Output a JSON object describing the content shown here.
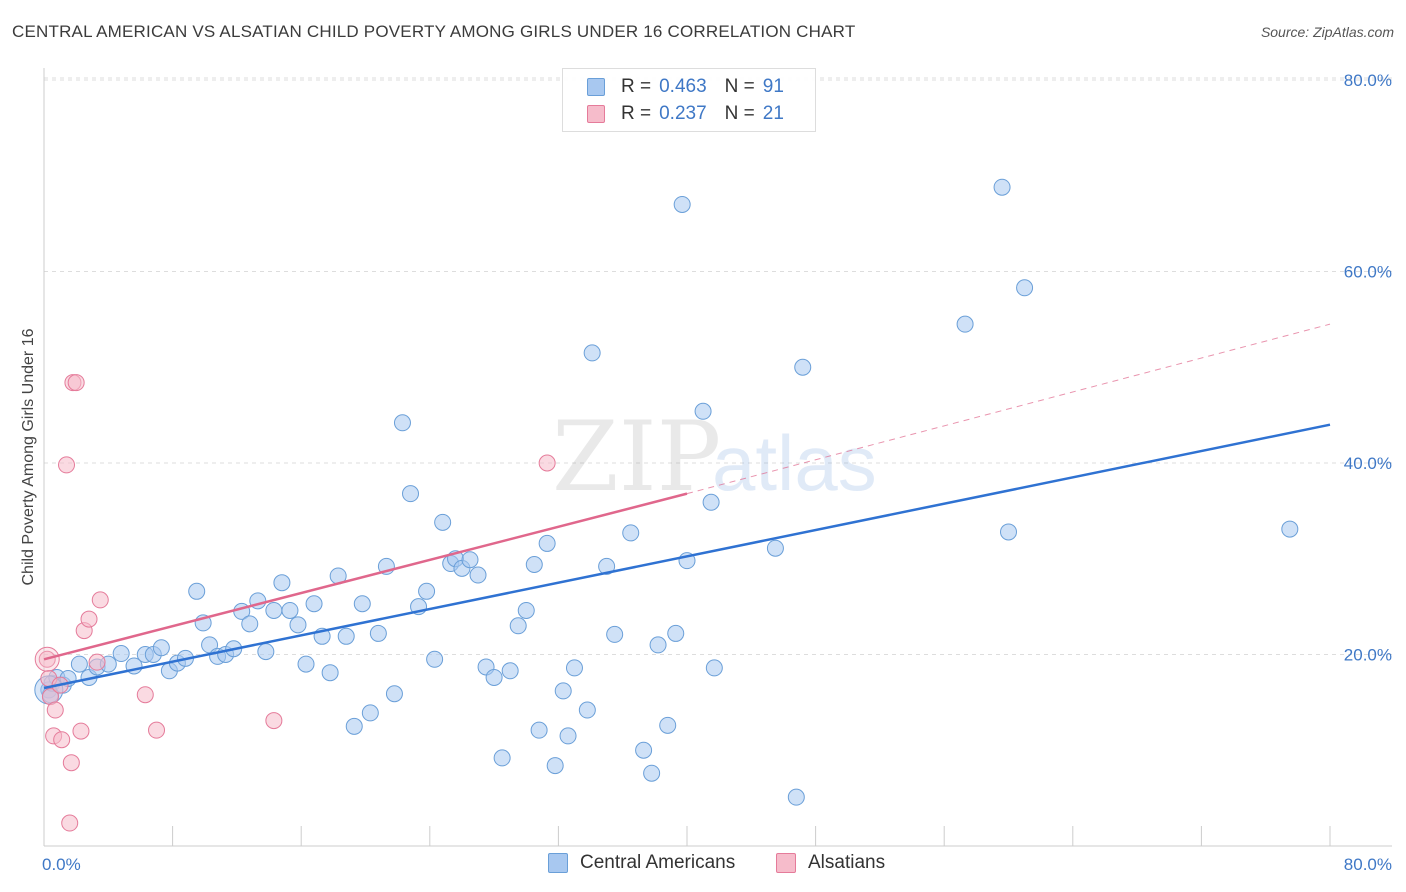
{
  "title": "CENTRAL AMERICAN VS ALSATIAN CHILD POVERTY AMONG GIRLS UNDER 16 CORRELATION CHART",
  "source": "Source: ZipAtlas.com",
  "watermark": {
    "zip": "ZIP",
    "atlas": "atlas"
  },
  "legend_top": [
    {
      "r_label": "R =",
      "r_value": "0.463",
      "n_label": "N =",
      "n_value": "91",
      "color": "#a8c8f0",
      "border": "#6a9fd8"
    },
    {
      "r_label": "R =",
      "r_value": "0.237",
      "n_label": "N =",
      "n_value": "21",
      "color": "#f6bccb",
      "border": "#e57b9a"
    }
  ],
  "legend_bottom": [
    {
      "label": "Central Americans",
      "color": "#a8c8f0",
      "border": "#6a9fd8"
    },
    {
      "label": "Alsatians",
      "color": "#f6bccb",
      "border": "#e57b9a"
    }
  ],
  "colors": {
    "blue_fill": "#a8c8f0",
    "blue_stroke": "#6a9fd8",
    "blue_line": "#2f72d2",
    "pink_fill": "#f6bccb",
    "pink_stroke": "#e57b9a",
    "pink_line": "#e0678c",
    "grid": "#dddddd",
    "tick_text": "#3f78c6"
  },
  "chart_data": {
    "type": "scatter",
    "title": "CENTRAL AMERICAN VS ALSATIAN CHILD POVERTY AMONG GIRLS UNDER 16 CORRELATION CHART",
    "xlabel": "",
    "ylabel": "Child Poverty Among Girls Under 16",
    "xlim": [
      0,
      80
    ],
    "ylim": [
      0,
      80
    ],
    "x_tick_labels": [
      "0.0%",
      "80.0%"
    ],
    "y_tick_labels": [
      "20.0%",
      "40.0%",
      "60.0%",
      "80.0%"
    ],
    "y_ticks": [
      20,
      40,
      60,
      80
    ],
    "grid": true,
    "legend_position": "top-center",
    "series": [
      {
        "name": "Central Americans",
        "r": 0.463,
        "n": 91,
        "trend": {
          "x": [
            0,
            80
          ],
          "y": [
            16.5,
            44.0
          ]
        },
        "points": [
          [
            0.3,
            16.3
          ],
          [
            0.4,
            15.8
          ],
          [
            0.5,
            17.0
          ],
          [
            0.8,
            17.6
          ],
          [
            1.2,
            16.8
          ],
          [
            1.5,
            17.5
          ],
          [
            2.2,
            19.0
          ],
          [
            2.8,
            17.6
          ],
          [
            3.3,
            18.7
          ],
          [
            4.0,
            19.0
          ],
          [
            4.8,
            20.1
          ],
          [
            5.6,
            18.8
          ],
          [
            6.3,
            20.0
          ],
          [
            6.8,
            20.0
          ],
          [
            7.3,
            20.7
          ],
          [
            7.8,
            18.3
          ],
          [
            8.3,
            19.1
          ],
          [
            8.8,
            19.6
          ],
          [
            9.5,
            26.6
          ],
          [
            9.9,
            23.3
          ],
          [
            10.3,
            21.0
          ],
          [
            10.8,
            19.8
          ],
          [
            11.3,
            20.0
          ],
          [
            11.8,
            20.6
          ],
          [
            12.3,
            24.5
          ],
          [
            12.8,
            23.2
          ],
          [
            13.3,
            25.6
          ],
          [
            13.8,
            20.3
          ],
          [
            14.3,
            24.6
          ],
          [
            14.8,
            27.5
          ],
          [
            15.3,
            24.6
          ],
          [
            15.8,
            23.1
          ],
          [
            16.3,
            19.0
          ],
          [
            16.8,
            25.3
          ],
          [
            17.3,
            21.9
          ],
          [
            17.8,
            18.1
          ],
          [
            18.3,
            28.2
          ],
          [
            18.8,
            21.9
          ],
          [
            19.3,
            12.5
          ],
          [
            19.8,
            25.3
          ],
          [
            20.3,
            13.9
          ],
          [
            20.8,
            22.2
          ],
          [
            21.3,
            29.2
          ],
          [
            21.8,
            15.9
          ],
          [
            22.3,
            44.2
          ],
          [
            22.8,
            36.8
          ],
          [
            23.3,
            25.0
          ],
          [
            23.8,
            26.6
          ],
          [
            24.3,
            19.5
          ],
          [
            24.8,
            33.8
          ],
          [
            25.3,
            29.5
          ],
          [
            25.6,
            30.0
          ],
          [
            26.0,
            29.0
          ],
          [
            26.5,
            29.9
          ],
          [
            27.0,
            28.3
          ],
          [
            27.5,
            18.7
          ],
          [
            28.0,
            17.6
          ],
          [
            28.5,
            9.2
          ],
          [
            29.0,
            18.3
          ],
          [
            29.5,
            23.0
          ],
          [
            30.0,
            24.6
          ],
          [
            30.5,
            29.4
          ],
          [
            30.8,
            12.1
          ],
          [
            31.3,
            31.6
          ],
          [
            31.8,
            8.4
          ],
          [
            32.3,
            16.2
          ],
          [
            32.6,
            11.5
          ],
          [
            33.0,
            18.6
          ],
          [
            33.8,
            14.2
          ],
          [
            34.1,
            51.5
          ],
          [
            35.0,
            29.2
          ],
          [
            35.5,
            22.1
          ],
          [
            36.5,
            32.7
          ],
          [
            37.3,
            10.0
          ],
          [
            37.8,
            7.6
          ],
          [
            38.2,
            21.0
          ],
          [
            38.8,
            12.6
          ],
          [
            39.3,
            22.2
          ],
          [
            39.7,
            67.0
          ],
          [
            40.0,
            29.8
          ],
          [
            41.0,
            45.4
          ],
          [
            41.5,
            35.9
          ],
          [
            41.7,
            18.6
          ],
          [
            45.5,
            31.1
          ],
          [
            46.8,
            5.1
          ],
          [
            47.2,
            50.0
          ],
          [
            57.3,
            54.5
          ],
          [
            59.6,
            68.8
          ],
          [
            60.0,
            32.8
          ],
          [
            61.0,
            58.3
          ],
          [
            77.5,
            33.1
          ]
        ]
      },
      {
        "name": "Alsatians",
        "r": 0.237,
        "n": 21,
        "trend": {
          "x": [
            0,
            40
          ],
          "y": [
            19.5,
            36.8
          ],
          "x_dashed": [
            40,
            80
          ],
          "y_dashed": [
            36.8,
            54.5
          ]
        },
        "points": [
          [
            0.2,
            19.5
          ],
          [
            0.3,
            17.5
          ],
          [
            0.4,
            15.6
          ],
          [
            0.6,
            11.5
          ],
          [
            0.7,
            14.2
          ],
          [
            1.0,
            16.8
          ],
          [
            1.1,
            11.1
          ],
          [
            1.4,
            39.8
          ],
          [
            1.6,
            2.4
          ],
          [
            1.7,
            8.7
          ],
          [
            1.8,
            48.4
          ],
          [
            2.0,
            48.4
          ],
          [
            2.3,
            12.0
          ],
          [
            2.5,
            22.5
          ],
          [
            2.8,
            23.7
          ],
          [
            3.3,
            19.2
          ],
          [
            3.5,
            25.7
          ],
          [
            6.3,
            15.8
          ],
          [
            7.0,
            12.1
          ],
          [
            14.3,
            13.1
          ],
          [
            31.3,
            40.0
          ]
        ]
      }
    ]
  }
}
